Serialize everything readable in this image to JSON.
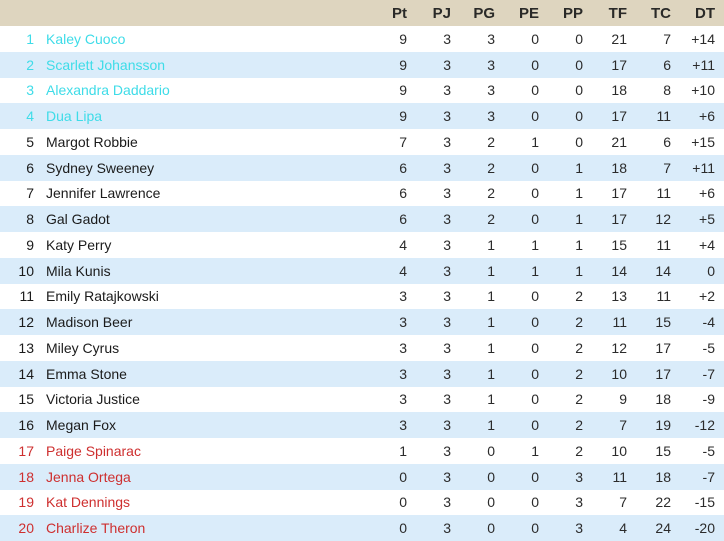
{
  "table": {
    "columns": [
      "Pt",
      "PJ",
      "PG",
      "PE",
      "PP",
      "TF",
      "TC",
      "DT"
    ],
    "rows": [
      {
        "rank": "1",
        "name": "Kaley Cuoco",
        "status": "top",
        "values": [
          "9",
          "3",
          "3",
          "0",
          "0",
          "21",
          "7",
          "+14"
        ]
      },
      {
        "rank": "2",
        "name": "Scarlett Johansson",
        "status": "top",
        "values": [
          "9",
          "3",
          "3",
          "0",
          "0",
          "17",
          "6",
          "+11"
        ]
      },
      {
        "rank": "3",
        "name": "Alexandra Daddario",
        "status": "top",
        "values": [
          "9",
          "3",
          "3",
          "0",
          "0",
          "18",
          "8",
          "+10"
        ]
      },
      {
        "rank": "4",
        "name": "Dua Lipa",
        "status": "top",
        "values": [
          "9",
          "3",
          "3",
          "0",
          "0",
          "17",
          "11",
          "+6"
        ]
      },
      {
        "rank": "5",
        "name": "Margot Robbie",
        "status": "mid",
        "values": [
          "7",
          "3",
          "2",
          "1",
          "0",
          "21",
          "6",
          "+15"
        ]
      },
      {
        "rank": "6",
        "name": "Sydney Sweeney",
        "status": "mid",
        "values": [
          "6",
          "3",
          "2",
          "0",
          "1",
          "18",
          "7",
          "+11"
        ]
      },
      {
        "rank": "7",
        "name": "Jennifer Lawrence",
        "status": "mid",
        "values": [
          "6",
          "3",
          "2",
          "0",
          "1",
          "17",
          "11",
          "+6"
        ]
      },
      {
        "rank": "8",
        "name": "Gal Gadot",
        "status": "mid",
        "values": [
          "6",
          "3",
          "2",
          "0",
          "1",
          "17",
          "12",
          "+5"
        ]
      },
      {
        "rank": "9",
        "name": "Katy Perry",
        "status": "mid",
        "values": [
          "4",
          "3",
          "1",
          "1",
          "1",
          "15",
          "11",
          "+4"
        ]
      },
      {
        "rank": "10",
        "name": "Mila Kunis",
        "status": "mid",
        "values": [
          "4",
          "3",
          "1",
          "1",
          "1",
          "14",
          "14",
          "0"
        ]
      },
      {
        "rank": "11",
        "name": "Emily Ratajkowski",
        "status": "mid",
        "values": [
          "3",
          "3",
          "1",
          "0",
          "2",
          "13",
          "11",
          "+2"
        ]
      },
      {
        "rank": "12",
        "name": "Madison Beer",
        "status": "mid",
        "values": [
          "3",
          "3",
          "1",
          "0",
          "2",
          "11",
          "15",
          "-4"
        ]
      },
      {
        "rank": "13",
        "name": "Miley Cyrus",
        "status": "mid",
        "values": [
          "3",
          "3",
          "1",
          "0",
          "2",
          "12",
          "17",
          "-5"
        ]
      },
      {
        "rank": "14",
        "name": "Emma Stone",
        "status": "mid",
        "values": [
          "3",
          "3",
          "1",
          "0",
          "2",
          "10",
          "17",
          "-7"
        ]
      },
      {
        "rank": "15",
        "name": "Victoria Justice",
        "status": "mid",
        "values": [
          "3",
          "3",
          "1",
          "0",
          "2",
          "9",
          "18",
          "-9"
        ]
      },
      {
        "rank": "16",
        "name": "Megan Fox",
        "status": "mid",
        "values": [
          "3",
          "3",
          "1",
          "0",
          "2",
          "7",
          "19",
          "-12"
        ]
      },
      {
        "rank": "17",
        "name": "Paige Spinarac",
        "status": "bottom",
        "values": [
          "1",
          "3",
          "0",
          "1",
          "2",
          "10",
          "15",
          "-5"
        ]
      },
      {
        "rank": "18",
        "name": "Jenna Ortega",
        "status": "bottom",
        "values": [
          "0",
          "3",
          "0",
          "0",
          "3",
          "11",
          "18",
          "-7"
        ]
      },
      {
        "rank": "19",
        "name": "Kat Dennings",
        "status": "bottom",
        "values": [
          "0",
          "3",
          "0",
          "0",
          "3",
          "7",
          "22",
          "-15"
        ]
      },
      {
        "rank": "20",
        "name": "Charlize Theron",
        "status": "bottom",
        "values": [
          "0",
          "3",
          "0",
          "0",
          "3",
          "4",
          "24",
          "-20"
        ]
      }
    ]
  },
  "colors": {
    "header_bg": "#ded5bf",
    "header_text": "#2a2a28",
    "row_odd_bg": "#ffffff",
    "row_even_bg": "#daecfa",
    "top_text": "#3edce8",
    "bottom_text": "#ce2f2f",
    "normal_text": "#1b1b1b",
    "number_text": "#2b2b2b"
  }
}
